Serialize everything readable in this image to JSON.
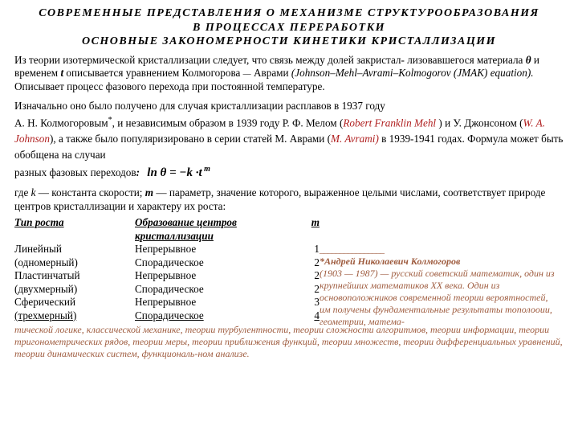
{
  "colors": {
    "text": "#000000",
    "accent_red": "#b02020",
    "accent_brown": "#9e5b3e",
    "background": "#ffffff"
  },
  "title": {
    "line1": "СОВРЕМЕННЫЕ  ПРЕДСТАВЛЕНИЯ  О  МЕХАНИЗМЕ  СТРУКТУРООБРАЗОВАНИЯ",
    "line2": "В  ПРОЦЕССАХ  ПЕРЕРАБОТКИ",
    "line3": "ОСНОВНЫЕ  ЗАКОНОМЕРНОСТИ  КИНЕТИКИ  КРИСТАЛЛИЗАЦИИ"
  },
  "p1": {
    "a": "Из теории изотермической кристаллизации следует, что связь между долей закристал-",
    "b": "лизовавшегося материала ",
    "theta": "θ",
    "c": "  и временем  ",
    "t": "t",
    "d": "  описывается  уравнением  Колмогорова ",
    "dash": "—",
    "e": " Аврами ",
    "jmak": "(Johnson–Mehl–Avrami–Kolmogorov (JMAK) equation).",
    "f": "Описывает процесс фазового перехода при постоянной температуре."
  },
  "p2": {
    "a": "Изначально оно было получено для случая кристаллизации расплавов в 1937 году",
    "b": "А. Н. Колмогоровым",
    "star": "*",
    "c": ",  и независимым образом в 1939 году Р. Ф. Мелом (",
    "mehl": "Robert Franklin Mehl ",
    "d": ") и  У. Джонсоном (",
    "johnson": "W. A. Johnson",
    "e": "), а также было популяризировано в серии статей М. Аврами (",
    "avrami": "M. Avrami)",
    "f": " в 1939-1941 годах.  Формула  может  быть обобщена на случаи",
    "g": "разных фазовых переходов",
    "colon": ":"
  },
  "formula": {
    "text": "ln θ = −k ·t",
    "sup": " m"
  },
  "p3": {
    "a": "где ",
    "k": "k",
    "b": " — константа скорости;   ",
    "m": "m",
    "c": " — параметр, значение которого, выраженное целыми числами, соответствует природе центров кристаллизации и  характеру их роста:"
  },
  "table": {
    "header": {
      "c1": "Тип роста",
      "c2": "Образование центров кристаллизации",
      "c3": "m"
    },
    "rows": [
      {
        "c1": "Линейный",
        "c2": " Непрерывное",
        "c3": "1"
      },
      {
        "c1": "(одномерный)",
        "c2": "Спорадическое",
        "c3": "2"
      },
      {
        "c1": "Пластинчатый",
        "c2": " Непрерывное",
        "c3": "2"
      },
      {
        "c1": "(двухмерный)",
        "c2": " Спорадическое",
        "c3": "2"
      },
      {
        "c1": "Сферический",
        "c2": "Непрерывное",
        "c3": "3"
      },
      {
        "c1": "(трехмерный)",
        "c2": "Спорадическое",
        "c3": "4"
      }
    ]
  },
  "footnote": {
    "dashes": "________________",
    "a": "*Андрей Николаевич Колмогоров",
    "b": "(1903 — 1987) — русский советский математик, один из крупнейших математиков XX века. Один из основоположников современной теории вероятностей, им получены фундаментальные результаты тополооии, геометрии, матема-"
  },
  "bio_cont": "тической логике, классической механике, теории турбулентности, теории сложности алгоритмов, теории информации, теории тригонометрических рядов, теории меры, теории приближения функций, теории множеств, теории дифференциальных уравнений, теории динамических систем, функциональ-ном анализе."
}
